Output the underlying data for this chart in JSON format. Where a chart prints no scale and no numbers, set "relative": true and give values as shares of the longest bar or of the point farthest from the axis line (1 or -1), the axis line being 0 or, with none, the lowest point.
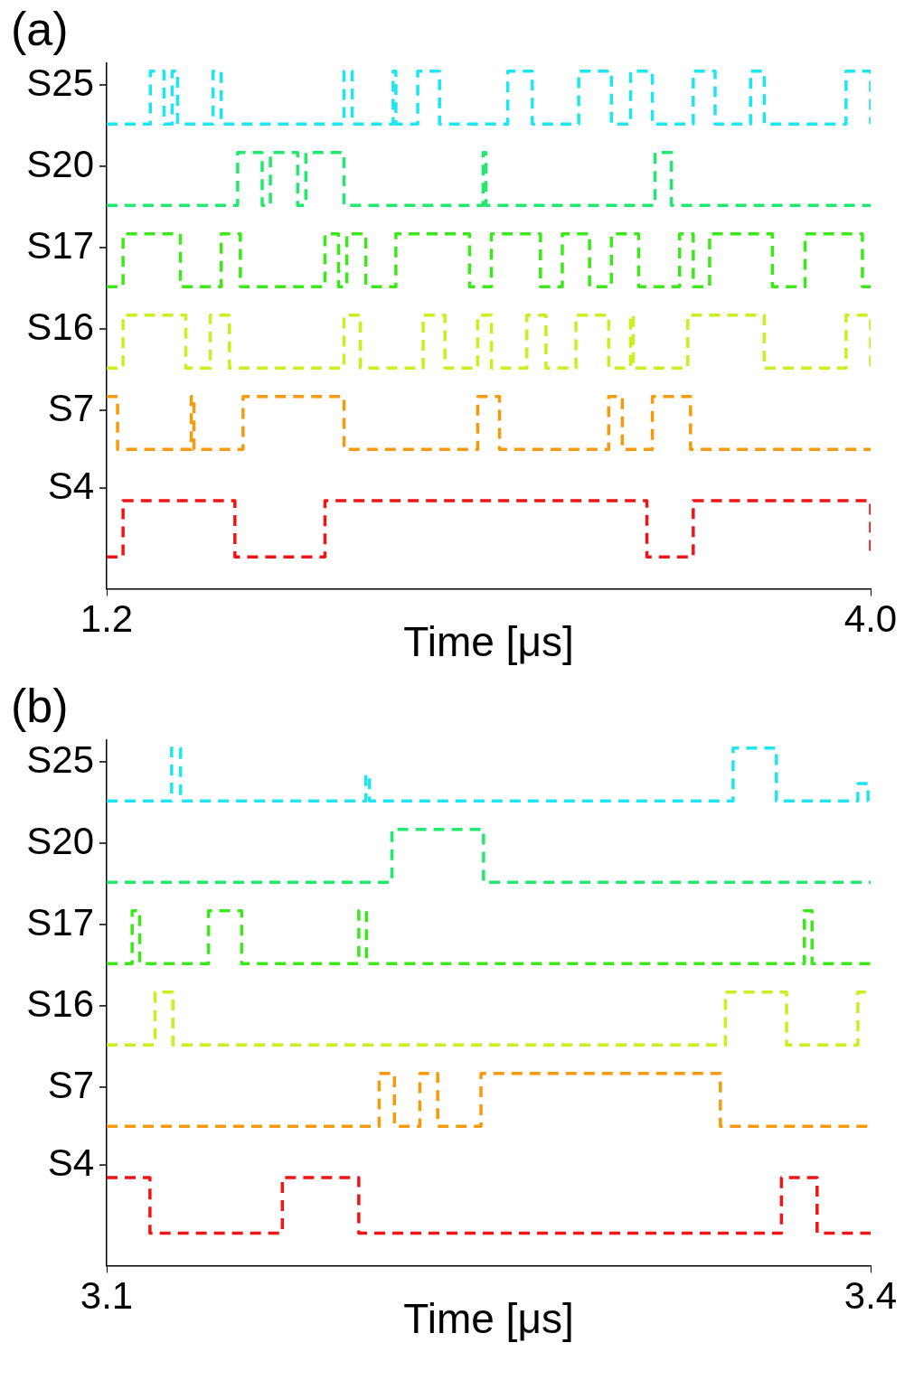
{
  "chart_data": [
    {
      "type": "line",
      "title": "(a)",
      "ylabel": "S25",
      "relative": true,
      "xlim": [
        1.2,
        4.0
      ],
      "tick_labels": false,
      "legend": false,
      "line_style": "dashed",
      "marker": "none",
      "series": [
        {
          "color": "#1ee6f0",
          "x": [
            1.2,
            1.36,
            1.36,
            1.41,
            1.41,
            1.44,
            1.44,
            1.46,
            1.46,
            1.59,
            1.59,
            1.62,
            1.62,
            2.07,
            2.07,
            2.1,
            2.1,
            2.25,
            2.25,
            2.26,
            2.26,
            2.34,
            2.34,
            2.42,
            2.42,
            2.67,
            2.67,
            2.76,
            2.76,
            2.93,
            2.93,
            3.05,
            3.05,
            3.12,
            3.12,
            3.2,
            3.2,
            3.35,
            3.35,
            3.43,
            3.43,
            3.56,
            3.56,
            3.61,
            3.61,
            3.91,
            3.91,
            4.0,
            4.0
          ],
          "values": [
            0,
            0,
            1,
            1,
            0,
            0,
            1,
            1,
            0,
            0,
            1,
            1,
            0,
            0,
            1,
            1,
            0,
            0,
            1,
            1,
            0,
            0,
            1,
            1,
            0,
            0,
            1,
            1,
            0,
            0,
            1,
            1,
            0,
            0,
            1,
            1,
            0,
            0,
            1,
            1,
            0,
            0,
            1,
            1,
            0,
            0,
            1,
            1,
            0
          ]
        }
      ]
    },
    {
      "type": "line",
      "ylabel": "S20",
      "relative": true,
      "xlim": [
        1.2,
        4.0
      ],
      "tick_labels": false,
      "legend": false,
      "line_style": "dashed",
      "marker": "none",
      "series": [
        {
          "color": "#22e86e",
          "x": [
            1.2,
            1.68,
            1.68,
            1.77,
            1.77,
            1.8,
            1.8,
            1.9,
            1.9,
            1.93,
            1.93,
            2.07,
            2.07,
            2.58,
            2.58,
            2.59,
            2.59,
            3.21,
            3.21,
            3.27,
            3.27,
            4.0
          ],
          "values": [
            0,
            0,
            1,
            1,
            0,
            0,
            1,
            1,
            0,
            0,
            1,
            1,
            0,
            0,
            1,
            1,
            0,
            0,
            1,
            1,
            0,
            0
          ]
        }
      ]
    },
    {
      "type": "line",
      "ylabel": "S17",
      "relative": true,
      "xlim": [
        1.2,
        4.0
      ],
      "tick_labels": false,
      "legend": false,
      "line_style": "dashed",
      "marker": "none",
      "series": [
        {
          "color": "#3ce81a",
          "x": [
            1.2,
            1.26,
            1.26,
            1.47,
            1.47,
            1.62,
            1.62,
            1.69,
            1.69,
            2.0,
            2.0,
            2.05,
            2.05,
            2.08,
            2.08,
            2.15,
            2.15,
            2.26,
            2.26,
            2.53,
            2.53,
            2.61,
            2.61,
            2.79,
            2.79,
            2.87,
            2.87,
            2.97,
            2.97,
            3.05,
            3.05,
            3.15,
            3.15,
            3.3,
            3.3,
            3.35,
            3.35,
            3.41,
            3.41,
            3.64,
            3.64,
            3.76,
            3.76,
            3.97,
            3.97,
            4.0
          ],
          "values": [
            0,
            0,
            1,
            1,
            0,
            0,
            1,
            1,
            0,
            0,
            1,
            1,
            0,
            0,
            1,
            1,
            0,
            0,
            1,
            1,
            0,
            0,
            1,
            1,
            0,
            0,
            1,
            1,
            0,
            0,
            1,
            1,
            0,
            0,
            1,
            1,
            0,
            0,
            1,
            1,
            0,
            0,
            1,
            1,
            0,
            0
          ]
        }
      ]
    },
    {
      "type": "line",
      "ylabel": "S16",
      "relative": true,
      "xlim": [
        1.2,
        4.0
      ],
      "tick_labels": false,
      "legend": false,
      "line_style": "dashed",
      "marker": "none",
      "series": [
        {
          "color": "#c8f01e",
          "x": [
            1.2,
            1.26,
            1.26,
            1.49,
            1.49,
            1.58,
            1.58,
            1.65,
            1.65,
            2.07,
            2.07,
            2.13,
            2.13,
            2.36,
            2.36,
            2.44,
            2.44,
            2.56,
            2.56,
            2.61,
            2.61,
            2.74,
            2.74,
            2.81,
            2.81,
            2.92,
            2.92,
            3.04,
            3.04,
            3.12,
            3.12,
            3.13,
            3.13,
            3.33,
            3.33,
            3.61,
            3.61,
            3.91,
            3.91,
            4.0,
            4.0
          ],
          "values": [
            0,
            0,
            1,
            1,
            0,
            0,
            1,
            1,
            0,
            0,
            1,
            1,
            0,
            0,
            1,
            1,
            0,
            0,
            1,
            1,
            0,
            0,
            1,
            1,
            0,
            0,
            1,
            1,
            0,
            0,
            1,
            1,
            0,
            0,
            1,
            1,
            0,
            0,
            1,
            1,
            0
          ]
        }
      ]
    },
    {
      "type": "line",
      "ylabel": "S7",
      "relative": true,
      "xlim": [
        1.2,
        4.0
      ],
      "tick_labels": false,
      "legend": false,
      "line_style": "dashed",
      "marker": "none",
      "series": [
        {
          "color": "#f59a0a",
          "x": [
            1.2,
            1.24,
            1.24,
            1.51,
            1.51,
            1.52,
            1.52,
            1.7,
            1.7,
            2.07,
            2.07,
            2.56,
            2.56,
            2.64,
            2.64,
            3.04,
            3.04,
            3.09,
            3.09,
            3.2,
            3.2,
            3.34,
            3.34,
            4.0
          ],
          "values": [
            1,
            1,
            0,
            0,
            1,
            1,
            0,
            0,
            1,
            1,
            0,
            0,
            1,
            1,
            0,
            0,
            1,
            1,
            0,
            0,
            1,
            1,
            0,
            0
          ]
        }
      ]
    },
    {
      "type": "line",
      "ylabel": "S4",
      "xlabel": "Time [μs]",
      "relative": true,
      "xlim": [
        1.2,
        4.0
      ],
      "xticks": [
        1.2,
        {
          "value": 4.0,
          "label": "4.0"
        }
      ],
      "legend": false,
      "line_style": "dashed",
      "marker": "none",
      "series": [
        {
          "color": "#f01414",
          "x": [
            1.2,
            1.26,
            1.26,
            1.67,
            1.67,
            2.0,
            2.0,
            3.18,
            3.18,
            3.35,
            3.35,
            4.0,
            4.0
          ],
          "values": [
            0.36,
            0.36,
            1,
            1,
            0.36,
            0.36,
            1,
            1,
            0.36,
            0.36,
            1,
            1,
            0.36
          ]
        }
      ]
    },
    {
      "type": "line",
      "title": "(b)",
      "ylabel": "S25",
      "relative": true,
      "xlim": [
        3.1,
        3.4
      ],
      "tick_labels": false,
      "legend": false,
      "line_style": "dashed",
      "marker": "none",
      "series": [
        {
          "color": "#1ee6f0",
          "x": [
            3.1,
            3.1255,
            3.1255,
            3.129,
            3.129,
            3.2018,
            3.2018,
            3.2032,
            3.2032,
            3.346,
            3.346,
            3.363,
            3.363,
            3.395,
            3.395,
            3.399,
            3.399,
            3.4
          ],
          "values": [
            0,
            0,
            1,
            1,
            0,
            0,
            0.49,
            0.49,
            0,
            0,
            1,
            1,
            0,
            0,
            0.33,
            0.33,
            0,
            0
          ]
        }
      ]
    },
    {
      "type": "line",
      "ylabel": "S20",
      "relative": true,
      "xlim": [
        3.1,
        3.4
      ],
      "tick_labels": false,
      "legend": false,
      "line_style": "dashed",
      "marker": "none",
      "series": [
        {
          "color": "#22e86e",
          "x": [
            3.1,
            3.212,
            3.212,
            3.248,
            3.248,
            3.4
          ],
          "values": [
            0,
            0,
            1,
            1,
            0,
            0
          ]
        }
      ]
    },
    {
      "type": "line",
      "ylabel": "S17",
      "relative": true,
      "xlim": [
        3.1,
        3.4
      ],
      "tick_labels": false,
      "legend": false,
      "line_style": "dashed",
      "marker": "none",
      "series": [
        {
          "color": "#3ce81a",
          "x": [
            3.1,
            3.11,
            3.11,
            3.113,
            3.113,
            3.14,
            3.14,
            3.153,
            3.153,
            3.199,
            3.199,
            3.202,
            3.202,
            3.374,
            3.374,
            3.377,
            3.377,
            3.4
          ],
          "values": [
            0,
            0,
            1,
            1,
            0,
            0,
            1,
            1,
            0,
            0,
            1,
            1,
            0,
            0,
            1,
            1,
            0,
            0
          ]
        }
      ]
    },
    {
      "type": "line",
      "ylabel": "S16",
      "relative": true,
      "xlim": [
        3.1,
        3.4
      ],
      "tick_labels": false,
      "legend": false,
      "line_style": "dashed",
      "marker": "none",
      "series": [
        {
          "color": "#c8f01e",
          "x": [
            3.1,
            3.119,
            3.119,
            3.126,
            3.126,
            3.343,
            3.343,
            3.367,
            3.367,
            3.395,
            3.395,
            3.4
          ],
          "values": [
            0,
            0,
            1,
            1,
            0,
            0,
            1,
            1,
            0,
            0,
            1,
            1
          ]
        }
      ]
    },
    {
      "type": "line",
      "ylabel": "S7",
      "relative": true,
      "xlim": [
        3.1,
        3.4
      ],
      "tick_labels": false,
      "legend": false,
      "line_style": "dashed",
      "marker": "none",
      "series": [
        {
          "color": "#f59a0a",
          "x": [
            3.1,
            3.207,
            3.207,
            3.213,
            3.213,
            3.223,
            3.223,
            3.23,
            3.23,
            3.247,
            3.247,
            3.341,
            3.341,
            3.4
          ],
          "values": [
            0,
            0,
            1,
            1,
            0,
            0,
            1,
            1,
            0,
            0,
            1,
            1,
            0,
            0
          ]
        }
      ]
    },
    {
      "type": "line",
      "ylabel": "S4",
      "xlabel": "Time [μs]",
      "relative": true,
      "xlim": [
        3.1,
        3.4
      ],
      "xticks": [
        3.1,
        3.4
      ],
      "legend": false,
      "line_style": "dashed",
      "marker": "none",
      "series": [
        {
          "color": "#f01414",
          "x": [
            3.1,
            3.117,
            3.117,
            3.169,
            3.169,
            3.199,
            3.199,
            3.365,
            3.365,
            3.379,
            3.379,
            3.4
          ],
          "values": [
            1,
            1,
            0.37,
            0.37,
            1,
            1,
            0.37,
            0.37,
            1,
            1,
            0.37,
            0.37
          ]
        }
      ]
    }
  ]
}
